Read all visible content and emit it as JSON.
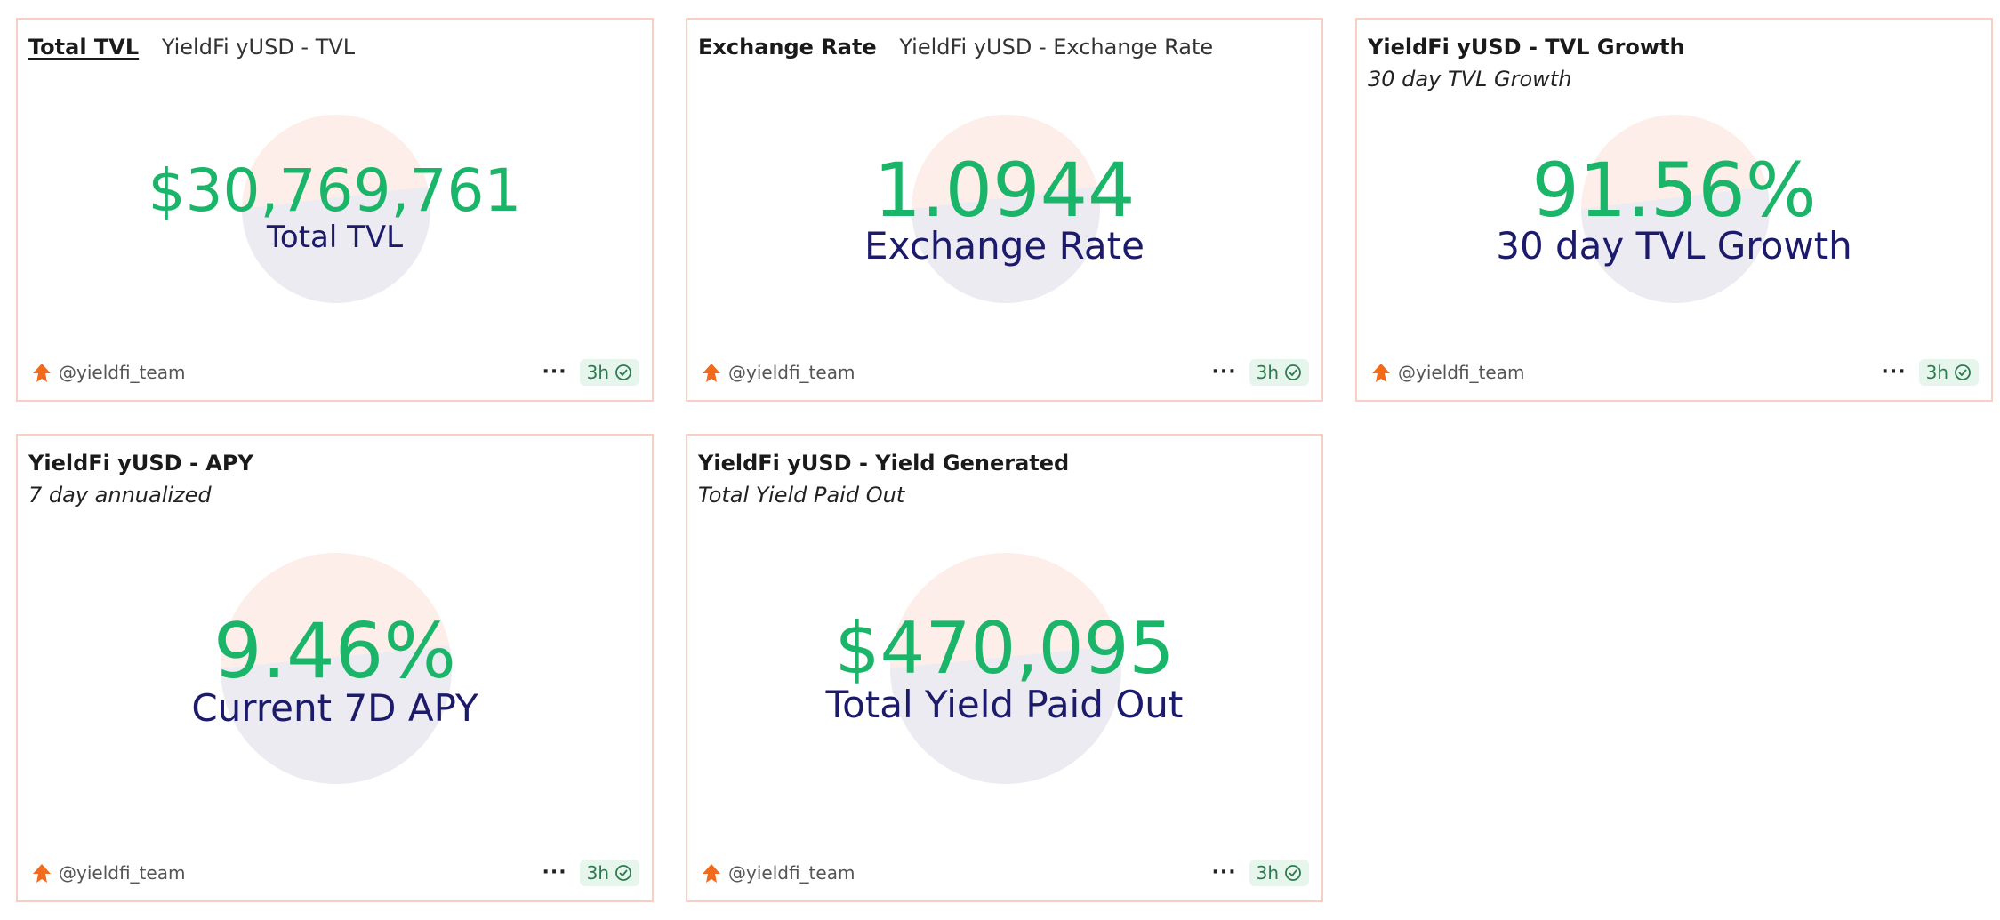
{
  "colors": {
    "value_green": "#1bb56a",
    "label_navy": "#1c1a6a",
    "card_border": "#f8cfc4",
    "badge_bg": "#e6f6ec",
    "author_orange": "#f26b1d"
  },
  "cards": [
    {
      "query_name": "Total TVL",
      "viz_name": "YieldFi yUSD - TVL",
      "value": "$30,769,761",
      "label": "Total TVL",
      "author": "@yieldfi_team",
      "more_icon": "more-icon",
      "refresh": "3h"
    },
    {
      "query_name": "Exchange Rate",
      "viz_name": "YieldFi yUSD - Exchange Rate",
      "value": "1.0944",
      "label": "Exchange Rate",
      "author": "@yieldfi_team",
      "refresh": "3h"
    },
    {
      "title": "YieldFi yUSD - TVL Growth",
      "subtitle": "30 day TVL Growth",
      "value": "91.56%",
      "label": "30 day TVL Growth",
      "author": "@yieldfi_team",
      "refresh": "3h"
    },
    {
      "title": "YieldFi yUSD - APY",
      "subtitle": "7 day annualized",
      "value": "9.46%",
      "label": "Current 7D APY",
      "author": "@yieldfi_team",
      "refresh": "3h"
    },
    {
      "title": "YieldFi yUSD - Yield Generated",
      "subtitle": "Total Yield Paid Out",
      "value": "$470,095",
      "label": "Total Yield Paid Out",
      "author": "@yieldfi_team",
      "refresh": "3h"
    }
  ]
}
